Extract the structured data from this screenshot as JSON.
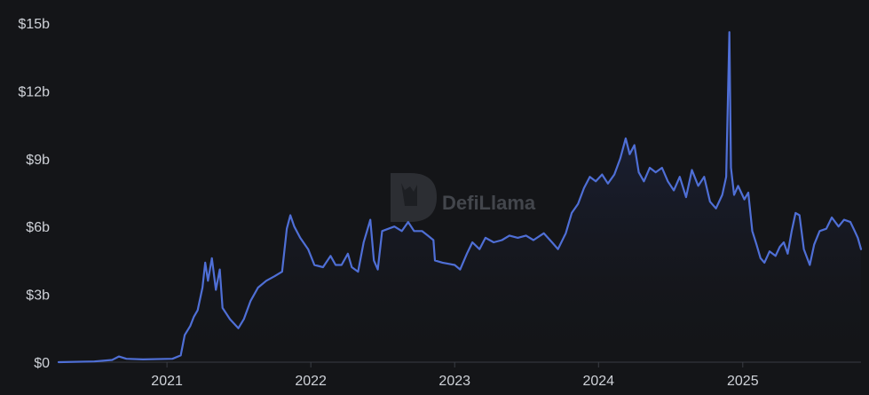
{
  "watermark": {
    "text": "DefiLlama",
    "icon": "defillama-logo-icon"
  },
  "colors": {
    "background": "#141518",
    "line": "#4f6fd6",
    "fill_top": "#2a3a7a",
    "axis": "#3a3d44",
    "text": "#cfd2d8"
  },
  "chart_data": {
    "type": "area",
    "title": "",
    "xlabel": "",
    "ylabel": "",
    "grid": false,
    "legend": "none",
    "x_range": [
      "2020-04-01",
      "2025-10-28"
    ],
    "ylim": [
      0,
      15
    ],
    "y_unit": "billions USD",
    "y_ticks": [
      {
        "value": 0,
        "label": "$0"
      },
      {
        "value": 3,
        "label": "$3b"
      },
      {
        "value": 6,
        "label": "$6b"
      },
      {
        "value": 9,
        "label": "$9b"
      },
      {
        "value": 12,
        "label": "$12b"
      },
      {
        "value": 15,
        "label": "$15b"
      }
    ],
    "x_ticks": [
      {
        "value": "2021-01-01",
        "label": "2021"
      },
      {
        "value": "2022-01-01",
        "label": "2022"
      },
      {
        "value": "2023-01-01",
        "label": "2023"
      },
      {
        "value": "2024-01-01",
        "label": "2024"
      },
      {
        "value": "2025-01-01",
        "label": "2025"
      }
    ],
    "series": [
      {
        "points": [
          [
            "2020-04-01",
            0.0
          ],
          [
            "2020-07-01",
            0.03
          ],
          [
            "2020-08-15",
            0.1
          ],
          [
            "2020-09-01",
            0.25
          ],
          [
            "2020-09-20",
            0.15
          ],
          [
            "2020-11-01",
            0.12
          ],
          [
            "2021-01-15",
            0.15
          ],
          [
            "2021-02-05",
            0.3
          ],
          [
            "2021-02-15",
            1.2
          ],
          [
            "2021-03-01",
            1.6
          ],
          [
            "2021-03-10",
            2.0
          ],
          [
            "2021-03-20",
            2.3
          ],
          [
            "2021-04-01",
            3.3
          ],
          [
            "2021-04-08",
            4.4
          ],
          [
            "2021-04-15",
            3.6
          ],
          [
            "2021-04-25",
            4.6
          ],
          [
            "2021-05-05",
            3.2
          ],
          [
            "2021-05-15",
            4.1
          ],
          [
            "2021-05-22",
            2.4
          ],
          [
            "2021-06-10",
            1.9
          ],
          [
            "2021-07-01",
            1.5
          ],
          [
            "2021-07-15",
            1.9
          ],
          [
            "2021-08-01",
            2.7
          ],
          [
            "2021-08-20",
            3.3
          ],
          [
            "2021-09-10",
            3.6
          ],
          [
            "2021-10-01",
            3.8
          ],
          [
            "2021-10-20",
            4.0
          ],
          [
            "2021-11-01",
            5.9
          ],
          [
            "2021-11-10",
            6.5
          ],
          [
            "2021-11-20",
            6.0
          ],
          [
            "2021-12-05",
            5.5
          ],
          [
            "2021-12-25",
            5.0
          ],
          [
            "2022-01-10",
            4.3
          ],
          [
            "2022-02-01",
            4.2
          ],
          [
            "2022-02-20",
            4.7
          ],
          [
            "2022-03-05",
            4.3
          ],
          [
            "2022-03-20",
            4.3
          ],
          [
            "2022-04-05",
            4.8
          ],
          [
            "2022-04-15",
            4.2
          ],
          [
            "2022-05-01",
            4.0
          ],
          [
            "2022-05-15",
            5.3
          ],
          [
            "2022-06-01",
            6.3
          ],
          [
            "2022-06-10",
            4.5
          ],
          [
            "2022-06-20",
            4.1
          ],
          [
            "2022-07-01",
            5.8
          ],
          [
            "2022-08-01",
            6.0
          ],
          [
            "2022-08-20",
            5.8
          ],
          [
            "2022-09-05",
            6.2
          ],
          [
            "2022-09-20",
            5.8
          ],
          [
            "2022-10-10",
            5.8
          ],
          [
            "2022-10-25",
            5.6
          ],
          [
            "2022-11-08",
            5.4
          ],
          [
            "2022-11-12",
            4.5
          ],
          [
            "2022-12-01",
            4.4
          ],
          [
            "2023-01-01",
            4.3
          ],
          [
            "2023-01-15",
            4.1
          ],
          [
            "2023-02-01",
            4.8
          ],
          [
            "2023-02-15",
            5.3
          ],
          [
            "2023-03-05",
            5.0
          ],
          [
            "2023-03-20",
            5.5
          ],
          [
            "2023-04-10",
            5.3
          ],
          [
            "2023-05-01",
            5.4
          ],
          [
            "2023-05-20",
            5.6
          ],
          [
            "2023-06-10",
            5.5
          ],
          [
            "2023-07-01",
            5.6
          ],
          [
            "2023-07-20",
            5.4
          ],
          [
            "2023-08-15",
            5.7
          ],
          [
            "2023-09-05",
            5.3
          ],
          [
            "2023-09-20",
            5.0
          ],
          [
            "2023-10-10",
            5.7
          ],
          [
            "2023-10-25",
            6.6
          ],
          [
            "2023-11-10",
            7.0
          ],
          [
            "2023-11-25",
            7.7
          ],
          [
            "2023-12-10",
            8.2
          ],
          [
            "2023-12-25",
            8.0
          ],
          [
            "2024-01-10",
            8.3
          ],
          [
            "2024-01-25",
            7.9
          ],
          [
            "2024-02-10",
            8.3
          ],
          [
            "2024-02-25",
            9.0
          ],
          [
            "2024-03-10",
            9.9
          ],
          [
            "2024-03-20",
            9.2
          ],
          [
            "2024-04-01",
            9.6
          ],
          [
            "2024-04-12",
            8.4
          ],
          [
            "2024-04-25",
            8.0
          ],
          [
            "2024-05-10",
            8.6
          ],
          [
            "2024-05-25",
            8.4
          ],
          [
            "2024-06-10",
            8.6
          ],
          [
            "2024-06-25",
            8.0
          ],
          [
            "2024-07-10",
            7.6
          ],
          [
            "2024-07-25",
            8.2
          ],
          [
            "2024-08-10",
            7.3
          ],
          [
            "2024-08-25",
            8.5
          ],
          [
            "2024-09-10",
            7.8
          ],
          [
            "2024-09-25",
            8.2
          ],
          [
            "2024-10-10",
            7.1
          ],
          [
            "2024-10-25",
            6.8
          ],
          [
            "2024-11-10",
            7.4
          ],
          [
            "2024-11-20",
            8.2
          ],
          [
            "2024-11-28",
            14.6
          ],
          [
            "2024-12-02",
            8.6
          ],
          [
            "2024-12-10",
            7.4
          ],
          [
            "2024-12-20",
            7.8
          ],
          [
            "2025-01-05",
            7.2
          ],
          [
            "2025-01-15",
            7.5
          ],
          [
            "2025-01-25",
            5.8
          ],
          [
            "2025-02-05",
            5.2
          ],
          [
            "2025-02-15",
            4.6
          ],
          [
            "2025-02-25",
            4.4
          ],
          [
            "2025-03-10",
            4.9
          ],
          [
            "2025-03-25",
            4.7
          ],
          [
            "2025-04-05",
            5.1
          ],
          [
            "2025-04-15",
            5.3
          ],
          [
            "2025-04-25",
            4.8
          ],
          [
            "2025-05-05",
            5.8
          ],
          [
            "2025-05-15",
            6.6
          ],
          [
            "2025-05-25",
            6.5
          ],
          [
            "2025-06-05",
            5.0
          ],
          [
            "2025-06-20",
            4.3
          ],
          [
            "2025-07-01",
            5.2
          ],
          [
            "2025-07-15",
            5.8
          ],
          [
            "2025-08-01",
            5.9
          ],
          [
            "2025-08-15",
            6.4
          ],
          [
            "2025-09-01",
            6.0
          ],
          [
            "2025-09-15",
            6.3
          ],
          [
            "2025-10-01",
            6.2
          ],
          [
            "2025-10-12",
            5.8
          ],
          [
            "2025-10-20",
            5.5
          ],
          [
            "2025-10-28",
            5.0
          ]
        ]
      }
    ]
  }
}
